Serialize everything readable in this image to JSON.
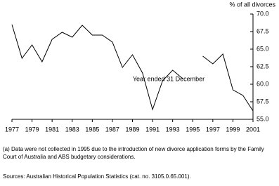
{
  "chart_data": {
    "type": "line",
    "y_axis_label": "% of all divorces",
    "x_axis_label": "Year ended 31 December",
    "x": [
      1977,
      1978,
      1979,
      1980,
      1981,
      1982,
      1983,
      1984,
      1985,
      1986,
      1987,
      1988,
      1989,
      1990,
      1991,
      1992,
      1993,
      1994,
      1995,
      1996,
      1997,
      1998,
      1999,
      2000,
      2001
    ],
    "values": [
      68.5,
      63.7,
      65.6,
      63.2,
      66.4,
      67.4,
      66.7,
      68.4,
      67.0,
      67.0,
      66.0,
      62.4,
      64.2,
      61.6,
      56.4,
      60.5,
      62.0,
      60.8,
      null,
      64.0,
      62.9,
      64.3,
      59.2,
      58.4,
      56.2
    ],
    "color": "#000000",
    "xlim": [
      1977,
      2001
    ],
    "xticks": [
      1977,
      1979,
      1981,
      1983,
      1985,
      1987,
      1989,
      1991,
      1993,
      1995,
      1997,
      1999,
      2001
    ],
    "ylim": [
      55,
      70
    ],
    "yticks": [
      {
        "value": 55,
        "label": "55.0"
      },
      {
        "value": 57.5,
        "label": "57.5"
      },
      {
        "value": 60,
        "label": "60.0"
      },
      {
        "value": 62.5,
        "label": "62.5"
      },
      {
        "value": 65,
        "label": "65.0"
      },
      {
        "value": 67.5,
        "label": "67.5"
      },
      {
        "value": 70,
        "label": "70.0"
      }
    ],
    "y_axis_side": "right",
    "grid": false,
    "notes": [
      "(a) Data were not collected in 1995 due to the introduction of new divorce application forms by the Family Court of Australia and ABS budgetary considerations.",
      "Sources: Australian Historical Population Statistics (cat. no. 3105.0.65.001)."
    ]
  }
}
